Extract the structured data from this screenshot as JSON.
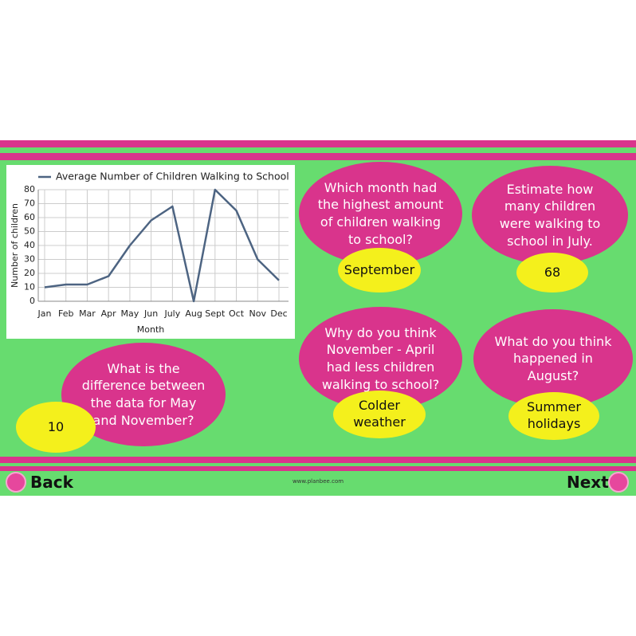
{
  "chart_data": {
    "type": "line",
    "categories": [
      "Jan",
      "Feb",
      "Mar",
      "Apr",
      "May",
      "Jun",
      "July",
      "Aug",
      "Sept",
      "Oct",
      "Nov",
      "Dec"
    ],
    "series": [
      {
        "name": "Average Number of Children Walking to School",
        "color": "#4d6482",
        "values": [
          10,
          12,
          12,
          18,
          40,
          58,
          68,
          0,
          80,
          65,
          30,
          15
        ]
      }
    ],
    "ylim": [
      0,
      80
    ],
    "yticks": [
      0,
      10,
      20,
      30,
      40,
      50,
      60,
      70,
      80
    ],
    "x_label": "Month",
    "y_label": "Number of children",
    "grid": true,
    "legend": "top"
  },
  "questions": [
    {
      "question": "Which month had the highest amount of children walking to school?",
      "answer": "September"
    },
    {
      "question": "Estimate how many children were walking to school in July.",
      "answer": "68"
    },
    {
      "question": "What is the difference between the data for May and November?",
      "answer": "10"
    },
    {
      "question": "Why do you think November - April had less children walking to school?",
      "answer": "Colder weather"
    },
    {
      "question": "What do you think happened in August?",
      "answer": "Summer holidays"
    }
  ],
  "footer": {
    "back": "Back",
    "next": "Next",
    "website": "www.planbee.com"
  }
}
